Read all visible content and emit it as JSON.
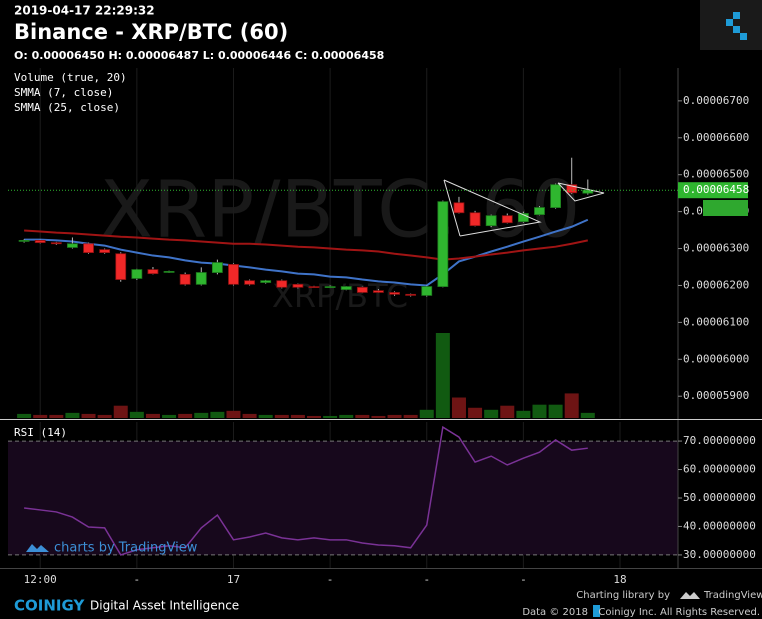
{
  "header": {
    "timestamp": "2019-04-17 22:29:32",
    "title": "Binance - XRP/BTC (60)",
    "ohlc": "O: 0.00006450 H: 0.00006487 L: 0.00006446 C: 0.00006458"
  },
  "chart_data": [
    {
      "type": "candlestick",
      "watermark": "XRP/BTC, 60",
      "watermark_small": "XRP/BTC",
      "x": [
        11,
        12,
        13,
        14,
        15,
        16,
        17,
        18,
        19,
        20,
        21,
        22,
        23,
        24,
        25,
        26,
        27,
        28,
        29,
        30,
        31,
        32,
        33,
        34,
        35,
        36,
        37,
        38,
        39,
        40,
        41,
        42,
        43,
        44,
        45,
        46
      ],
      "xlim": [
        10,
        51.6
      ],
      "open": [
        6.32e-05,
        6.322e-05,
        6.316e-05,
        6.303e-05,
        6.313e-05,
        6.297e-05,
        6.286e-05,
        6.219e-05,
        6.243e-05,
        6.237e-05,
        6.23e-05,
        6.203e-05,
        6.235e-05,
        6.257e-05,
        6.213e-05,
        6.208e-05,
        6.213e-05,
        6.203e-05,
        6.197e-05,
        6.196e-05,
        6.189e-05,
        6.195e-05,
        6.186e-05,
        6.181e-05,
        6.176e-05,
        6.173e-05,
        6.197e-05,
        6.424e-05,
        6.397e-05,
        6.362e-05,
        6.389e-05,
        6.373e-05,
        6.392e-05,
        6.411e-05,
        6.473e-05,
        6.45e-05
      ],
      "high": [
        6.325e-05,
        6.324e-05,
        6.318e-05,
        6.33e-05,
        6.316e-05,
        6.3e-05,
        6.29e-05,
        6.245e-05,
        6.25e-05,
        6.24e-05,
        6.235e-05,
        6.249e-05,
        6.27e-05,
        6.26e-05,
        6.216e-05,
        6.215e-05,
        6.216e-05,
        6.205e-05,
        6.199e-05,
        6.2e-05,
        6.198e-05,
        6.197e-05,
        6.19e-05,
        6.184e-05,
        6.178e-05,
        6.2e-05,
        6.43e-05,
        6.44e-05,
        6.402e-05,
        6.392e-05,
        6.395e-05,
        6.4e-05,
        6.415e-05,
        6.476e-05,
        6.546e-05,
        6.487e-05
      ],
      "low": [
        6.316e-05,
        6.314e-05,
        6.31e-05,
        6.3e-05,
        6.286e-05,
        6.286e-05,
        6.21e-05,
        6.215e-05,
        6.23e-05,
        6.234e-05,
        6.2e-05,
        6.2e-05,
        6.23e-05,
        6.2e-05,
        6.2e-05,
        6.205e-05,
        6.192e-05,
        6.192e-05,
        6.194e-05,
        6.193e-05,
        6.187e-05,
        6.18e-05,
        6.18e-05,
        6.172e-05,
        6.17e-05,
        6.17e-05,
        6.195e-05,
        6.395e-05,
        6.36e-05,
        6.358e-05,
        6.368e-05,
        6.37e-05,
        6.39e-05,
        6.408e-05,
        6.448e-05,
        6.446e-05
      ],
      "close": [
        6.322e-05,
        6.316e-05,
        6.313e-05,
        6.313e-05,
        6.289e-05,
        6.289e-05,
        6.216e-05,
        6.243e-05,
        6.232e-05,
        6.238e-05,
        6.203e-05,
        6.235e-05,
        6.262e-05,
        6.203e-05,
        6.203e-05,
        6.213e-05,
        6.195e-05,
        6.195e-05,
        6.196e-05,
        6.197e-05,
        6.197e-05,
        6.181e-05,
        6.181e-05,
        6.176e-05,
        6.173e-05,
        6.197e-05,
        6.427e-05,
        6.397e-05,
        6.362e-05,
        6.389e-05,
        6.37e-05,
        6.395e-05,
        6.411e-05,
        6.473e-05,
        6.451e-05,
        6.458e-05
      ],
      "up_color": "#2fb62f",
      "down_color": "#f02828",
      "volume": {
        "name": "Volume (true, 20)",
        "up_color": "#115a11",
        "down_color": "#6e1414",
        "values": [
          4,
          3,
          3,
          5,
          4,
          3,
          12,
          6,
          4,
          3,
          4,
          5,
          6,
          7,
          4,
          3,
          3,
          3,
          2,
          2,
          3,
          3,
          2,
          3,
          3,
          8,
          83,
          20,
          10,
          8,
          12,
          7,
          13,
          13,
          24,
          5
        ]
      },
      "series": [
        {
          "name": "SMMA (7, close)",
          "color": "#3f73c8",
          "values": [
            6.324e-05,
            6.324e-05,
            6.322e-05,
            6.319e-05,
            6.313e-05,
            6.308e-05,
            6.297e-05,
            6.289e-05,
            6.281e-05,
            6.276e-05,
            6.268e-05,
            6.262e-05,
            6.259e-05,
            6.254e-05,
            6.249e-05,
            6.243e-05,
            6.238e-05,
            6.232e-05,
            6.23e-05,
            6.224e-05,
            6.222e-05,
            6.216e-05,
            6.211e-05,
            6.208e-05,
            6.203e-05,
            6.2e-05,
            6.23e-05,
            6.265e-05,
            6.278e-05,
            6.292e-05,
            6.305e-05,
            6.319e-05,
            6.332e-05,
            6.346e-05,
            6.359e-05,
            6.378e-05
          ]
        },
        {
          "name": "SMMA (25, close)",
          "color": "#a01414",
          "values": [
            6.349e-05,
            6.346e-05,
            6.343e-05,
            6.341e-05,
            6.338e-05,
            6.335e-05,
            6.332e-05,
            6.33e-05,
            6.327e-05,
            6.324e-05,
            6.322e-05,
            6.319e-05,
            6.316e-05,
            6.313e-05,
            6.313e-05,
            6.311e-05,
            6.308e-05,
            6.305e-05,
            6.303e-05,
            6.3e-05,
            6.297e-05,
            6.295e-05,
            6.292e-05,
            6.286e-05,
            6.281e-05,
            6.276e-05,
            6.27e-05,
            6.273e-05,
            6.278e-05,
            6.284e-05,
            6.289e-05,
            6.295e-05,
            6.3e-05,
            6.305e-05,
            6.313e-05,
            6.322e-05
          ]
        }
      ],
      "ylim": [
        5.841e-05,
        6.789e-05
      ],
      "yticks": [
        {
          "value": 6.7e-05,
          "label": "0.00006700"
        },
        {
          "value": 6.6e-05,
          "label": "0.00006600"
        },
        {
          "value": 6.5e-05,
          "label": "0.00006500"
        },
        {
          "value": 6.4e-05,
          "label": "0.00006400"
        },
        {
          "value": 6.3e-05,
          "label": "0.00006300"
        },
        {
          "value": 6.2e-05,
          "label": "0.00006200"
        },
        {
          "value": 6.1e-05,
          "label": "0.00006100"
        },
        {
          "value": 6e-05,
          "label": "0.00006000"
        },
        {
          "value": 5.9e-05,
          "label": "0.00005900"
        }
      ],
      "last_price": {
        "value": 6.458e-05,
        "label": "0.00006458"
      },
      "grid": "x"
    },
    {
      "type": "line",
      "title": "RSI (14)",
      "branding": "charts by TradingView",
      "x": [
        11,
        12,
        13,
        14,
        15,
        16,
        17,
        18,
        19,
        20,
        21,
        22,
        23,
        24,
        25,
        26,
        27,
        28,
        29,
        30,
        31,
        32,
        33,
        34,
        35,
        36,
        37,
        38,
        39,
        40,
        41,
        42,
        43,
        44,
        45,
        46
      ],
      "xlim": [
        10,
        51.6
      ],
      "xticks": [
        {
          "value": 12,
          "label": "12:00"
        },
        {
          "value": 18,
          "label": "-"
        },
        {
          "value": 24,
          "label": "17"
        },
        {
          "value": 30,
          "label": "-"
        },
        {
          "value": 36,
          "label": "-"
        },
        {
          "value": 42,
          "label": "-"
        },
        {
          "value": 48,
          "label": "18"
        }
      ],
      "series": [
        {
          "name": "RSI (14)",
          "color": "#7a3296",
          "values": [
            46.5,
            45.8,
            45.1,
            43.3,
            39.8,
            39.5,
            30.0,
            31.8,
            32.5,
            33.2,
            32.5,
            39.5,
            44.0,
            35.3,
            36.3,
            37.7,
            36.0,
            35.3,
            36.0,
            35.3,
            35.3,
            34.2,
            33.5,
            33.2,
            32.5,
            40.5,
            74.9,
            71.4,
            62.6,
            64.7,
            61.6,
            64.0,
            66.1,
            70.4,
            66.8,
            67.5
          ]
        }
      ],
      "ylim": [
        25.4,
        76.7
      ],
      "yticks": [
        {
          "value": 70,
          "label": "70.00000000"
        },
        {
          "value": 60,
          "label": "60.00000000"
        },
        {
          "value": 50,
          "label": "50.00000000"
        },
        {
          "value": 40,
          "label": "40.00000000"
        },
        {
          "value": 30,
          "label": "30.00000000"
        }
      ],
      "grid": "x"
    }
  ],
  "footer": {
    "brand": "COINIGY",
    "tagline": "Digital Asset Intelligence",
    "library": "Charting library by",
    "library_name": "TradingView",
    "data_note": "Data © 2018",
    "rights": "Coinigy Inc. All Rights Reserved."
  }
}
